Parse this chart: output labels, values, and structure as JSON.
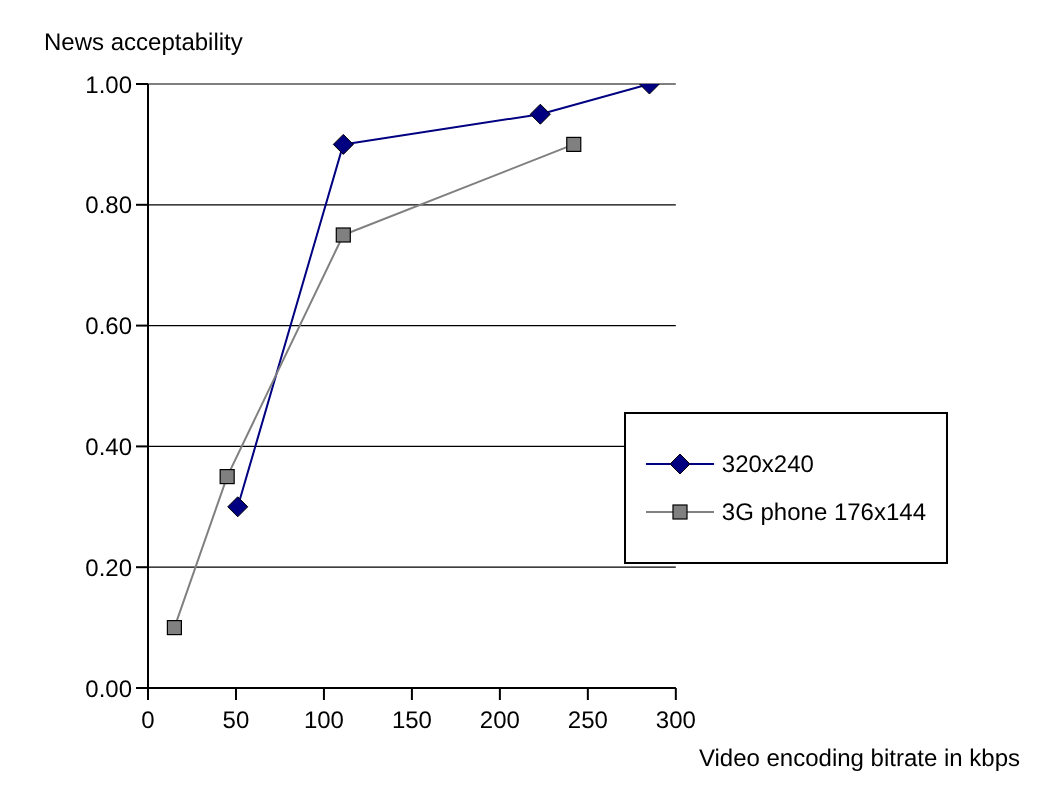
{
  "chart_data": {
    "type": "line",
    "ylabel": "News acceptability",
    "xlabel": "Video encoding bitrate in kbps",
    "xlim": [
      0,
      300
    ],
    "xticks": [
      0,
      50,
      100,
      150,
      200,
      250,
      300
    ],
    "ylim": [
      0,
      1
    ],
    "yticks": [
      {
        "value": 0,
        "label": "0.00"
      },
      {
        "value": 0.2,
        "label": "0.20"
      },
      {
        "value": 0.4,
        "label": "0.40"
      },
      {
        "value": 0.6,
        "label": "0.60"
      },
      {
        "value": 0.8,
        "label": "0.80"
      },
      {
        "value": 1,
        "label": "1.00"
      }
    ],
    "grid": "y",
    "legend": "bottom right",
    "series": [
      {
        "name": "320x240",
        "color": "#000080",
        "marker": "diamond",
        "x": [
          51,
          111,
          223,
          285
        ],
        "values": [
          0.3,
          0.9,
          0.95,
          1.0
        ]
      },
      {
        "name": "3G phone 176x144",
        "color": "#808080",
        "marker": "square",
        "x": [
          15,
          45,
          111,
          242
        ],
        "values": [
          0.1,
          0.35,
          0.75,
          0.9
        ]
      }
    ]
  }
}
